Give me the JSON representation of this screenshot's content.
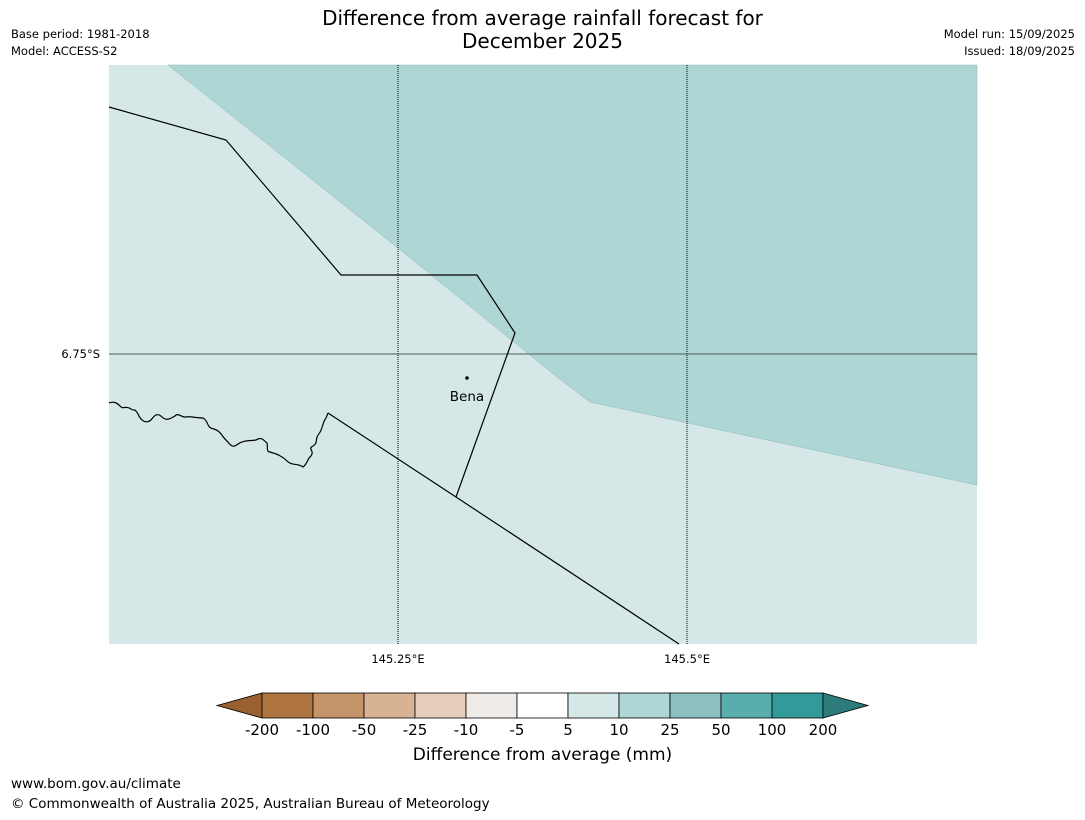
{
  "header": {
    "title_line1": "Difference from average rainfall forecast for",
    "title_line2": "December 2025",
    "base_period": "Base period: 1981-2018",
    "model": "Model: ACCESS-S2",
    "model_run": "Model run: 15/09/2025",
    "issued": "Issued: 18/09/2025"
  },
  "map": {
    "lat_label": "6.75°S",
    "lon_labels": [
      "145.25°E",
      "145.5°E"
    ],
    "town": "Bena",
    "colors": {
      "band_5_10": "#d5e8e7",
      "band_10_25": "#aed6d5",
      "border": "#000000",
      "gridline_lat": "#4a5e5c"
    }
  },
  "legend": {
    "title": "Difference from average (mm)",
    "ticks": [
      "-200",
      "-100",
      "-50",
      "-25",
      "-10",
      "-5",
      "5",
      "10",
      "25",
      "50",
      "100",
      "200"
    ],
    "colors": [
      "#99612f",
      "#ae743f",
      "#c49369",
      "#d7b293",
      "#e5cfbb",
      "#efebe6",
      "#ffffff",
      "#d5e8e7",
      "#aed6d5",
      "#8ebfc0",
      "#5aadad",
      "#329a99",
      "#2b7c7b"
    ]
  },
  "footer": {
    "url": "www.bom.gov.au/climate",
    "copyright": "© Commonwealth of Australia 2025, Australian Bureau of Meteorology"
  }
}
